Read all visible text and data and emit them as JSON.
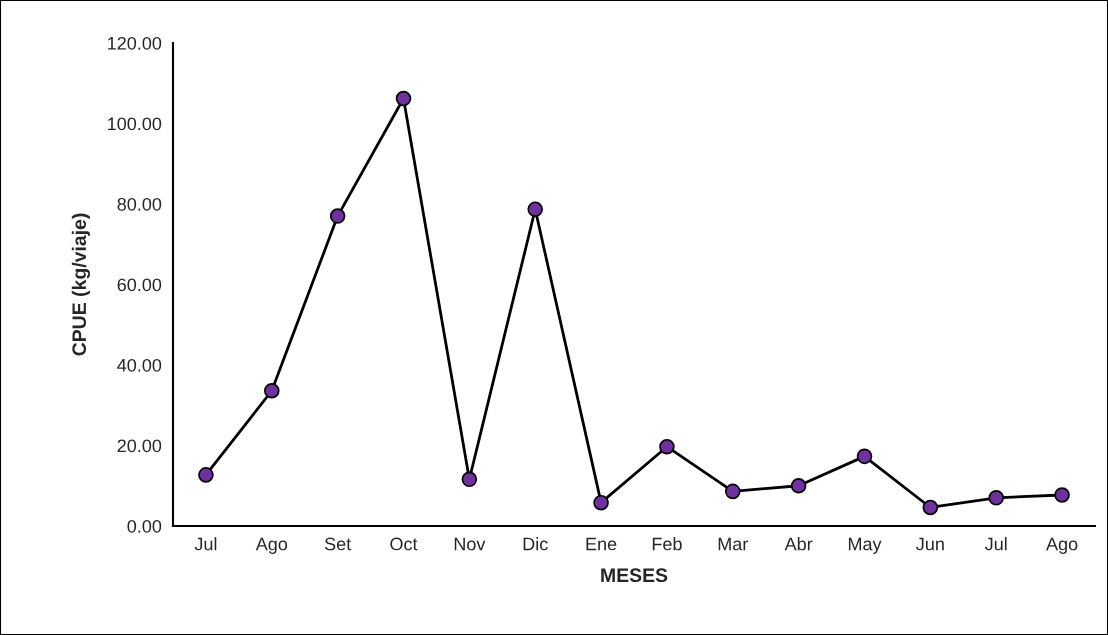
{
  "chart_data": {
    "type": "line",
    "xlabel": "MESES",
    "ylabel": "CPUE (kg/viaje)",
    "categories": [
      "Jul",
      "Ago",
      "Set",
      "Oct",
      "Nov",
      "Dic",
      "Ene",
      "Feb",
      "Mar",
      "Abr",
      "May",
      "Jun",
      "Jul",
      "Ago"
    ],
    "series": [
      {
        "color": "#7030a0",
        "values": [
          12.7,
          33.6,
          77.0,
          106.2,
          11.6,
          78.7,
          5.8,
          19.7,
          8.6,
          10.0,
          17.3,
          4.6,
          7.0,
          7.7
        ]
      }
    ],
    "ylim": [
      0,
      120
    ],
    "yticks": [
      {
        "value": 0,
        "label": "0.00"
      },
      {
        "value": 20,
        "label": "20.00"
      },
      {
        "value": 40,
        "label": "40.00"
      },
      {
        "value": 60,
        "label": "60.00"
      },
      {
        "value": 80,
        "label": "80.00"
      },
      {
        "value": 100,
        "label": "100.00"
      },
      {
        "value": 120,
        "label": "120.00"
      }
    ],
    "grid": false,
    "marker": "circle",
    "line_style": "solid"
  }
}
